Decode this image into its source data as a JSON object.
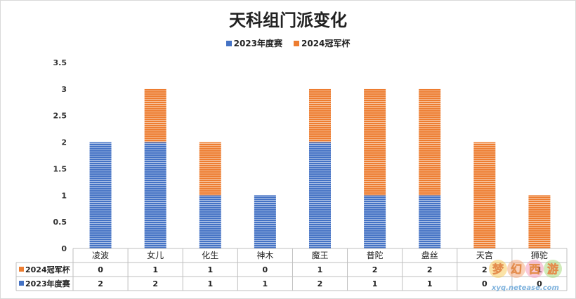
{
  "chart_data": {
    "type": "bar",
    "stacked": true,
    "title": "天科组门派变化",
    "categories": [
      "凌波",
      "女儿",
      "化生",
      "神木",
      "魔王",
      "普陀",
      "盘丝",
      "天宫",
      "狮驼"
    ],
    "series": [
      {
        "name": "2023年度赛",
        "color": "#4472c4",
        "values": [
          2,
          2,
          1,
          1,
          2,
          1,
          1,
          0,
          0
        ]
      },
      {
        "name": "2024冠军杯",
        "color": "#ed7d31",
        "values": [
          0,
          1,
          1,
          0,
          1,
          2,
          2,
          2,
          1
        ]
      }
    ],
    "yticks": [
      "0",
      "0.5",
      "1",
      "1.5",
      "2",
      "2.5",
      "3",
      "3.5"
    ],
    "ylim": [
      0,
      3.5
    ],
    "grid": false,
    "legend_position": "top",
    "data_table": true
  },
  "watermark": {
    "site": "xyq.netease.com",
    "logo": "梦幻西游"
  }
}
